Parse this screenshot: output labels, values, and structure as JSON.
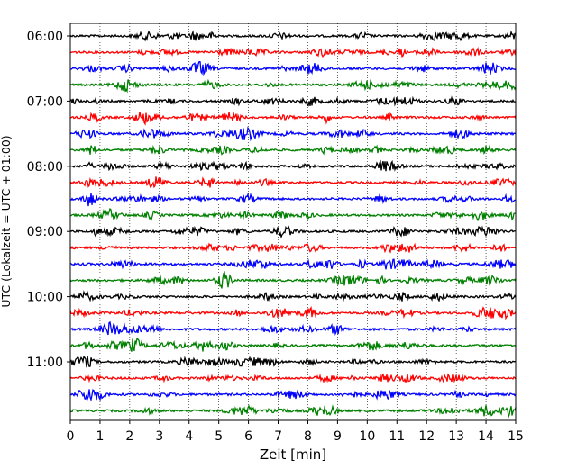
{
  "chart_data": {
    "type": "line",
    "title": "",
    "xlabel": "Zeit  [min]",
    "ylabel": "UTC (Lokalzeit = UTC + 01:00)",
    "xlim": [
      0,
      15
    ],
    "x_ticks": [
      "0",
      "1",
      "2",
      "3",
      "4",
      "5",
      "6",
      "7",
      "8",
      "9",
      "10",
      "11",
      "12",
      "13",
      "14",
      "15"
    ],
    "y_ticks": [
      "06:00",
      "07:00",
      "08:00",
      "09:00",
      "10:00",
      "11:00"
    ],
    "vertical_grid": true,
    "grid_style": "dotted",
    "series": [
      {
        "start": "06:00",
        "color": "#000000"
      },
      {
        "start": "06:15",
        "color": "#ff0000"
      },
      {
        "start": "06:30",
        "color": "#0000ff"
      },
      {
        "start": "06:45",
        "color": "#008000"
      },
      {
        "start": "07:00",
        "color": "#000000"
      },
      {
        "start": "07:15",
        "color": "#ff0000"
      },
      {
        "start": "07:30",
        "color": "#0000ff"
      },
      {
        "start": "07:45",
        "color": "#008000"
      },
      {
        "start": "08:00",
        "color": "#000000"
      },
      {
        "start": "08:15",
        "color": "#ff0000"
      },
      {
        "start": "08:30",
        "color": "#0000ff"
      },
      {
        "start": "08:45",
        "color": "#008000"
      },
      {
        "start": "09:00",
        "color": "#000000"
      },
      {
        "start": "09:15",
        "color": "#ff0000"
      },
      {
        "start": "09:30",
        "color": "#0000ff"
      },
      {
        "start": "09:45",
        "color": "#008000"
      },
      {
        "start": "10:00",
        "color": "#000000"
      },
      {
        "start": "10:15",
        "color": "#ff0000"
      },
      {
        "start": "10:30",
        "color": "#0000ff"
      },
      {
        "start": "10:45",
        "color": "#008000"
      },
      {
        "start": "11:00",
        "color": "#000000"
      },
      {
        "start": "11:15",
        "color": "#ff0000"
      },
      {
        "start": "11:30",
        "color": "#0000ff"
      },
      {
        "start": "11:45",
        "color": "#008000"
      }
    ]
  }
}
